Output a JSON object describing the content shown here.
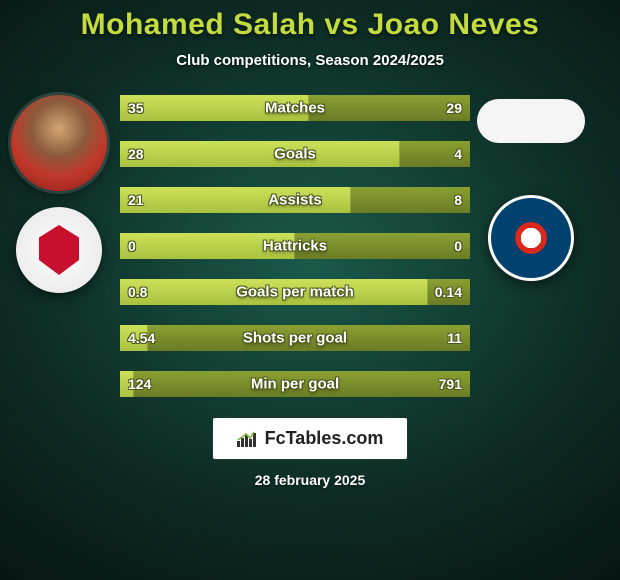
{
  "title": "Mohamed Salah vs Joao Neves",
  "subtitle": "Club competitions, Season 2024/2025",
  "players": {
    "left": {
      "name": "Mohamed Salah",
      "club": "Liverpool"
    },
    "right": {
      "name": "Joao Neves",
      "club": "Paris Saint-Germain"
    }
  },
  "stats_type": "comparison-bars",
  "colors": {
    "title": "#c3db3e",
    "text": "#ffffff",
    "bar_left": "#b8d048",
    "bar_right": "#7a8f2c",
    "background_center": "#1a5a4a",
    "background_edge": "#071612"
  },
  "stats": [
    {
      "label": "Matches",
      "left_value": "35",
      "right_value": "29",
      "left_pct": 54
    },
    {
      "label": "Goals",
      "left_value": "28",
      "right_value": "4",
      "left_pct": 80
    },
    {
      "label": "Assists",
      "left_value": "21",
      "right_value": "8",
      "left_pct": 66
    },
    {
      "label": "Hattricks",
      "left_value": "0",
      "right_value": "0",
      "left_pct": 50
    },
    {
      "label": "Goals per match",
      "left_value": "0.8",
      "right_value": "0.14",
      "left_pct": 88
    },
    {
      "label": "Shots per goal",
      "left_value": "4.54",
      "right_value": "11",
      "left_pct": 8
    },
    {
      "label": "Min per goal",
      "left_value": "124",
      "right_value": "791",
      "left_pct": 4
    }
  ],
  "site_logo_text": "FcTables.com",
  "date": "28 february 2025"
}
